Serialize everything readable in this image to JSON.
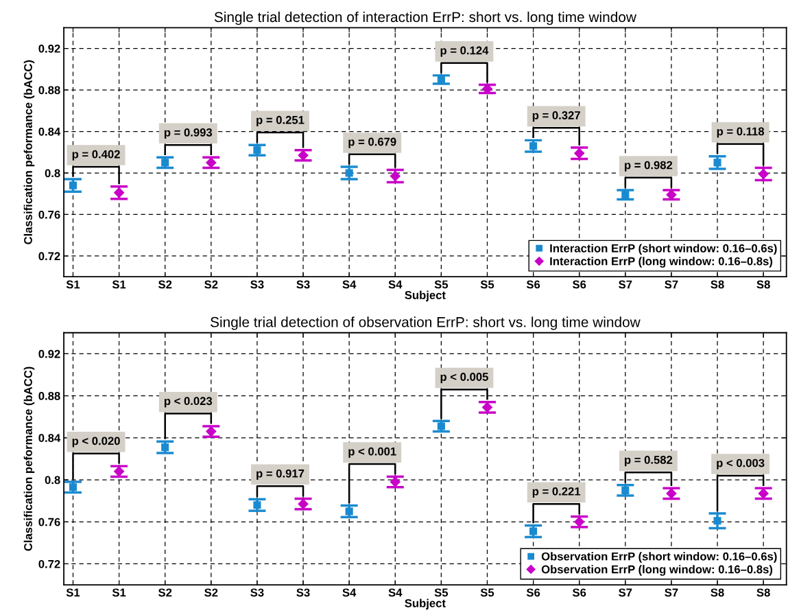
{
  "chart_data": [
    {
      "type": "scatter",
      "title": "Single trial detection of interaction ErrP: short vs. long time window",
      "xlabel": "Subject",
      "ylabel": "Classification peformance (bACC)",
      "categories": [
        "S1",
        "S1",
        "S2",
        "S2",
        "S3",
        "S3",
        "S4",
        "S4",
        "S5",
        "S5",
        "S6",
        "S6",
        "S7",
        "S7",
        "S8",
        "S8"
      ],
      "series": [
        {
          "name": "Interaction ErrP (short window: 0.16–0.6s)",
          "color": "#1a8ad0",
          "marker": "square",
          "values": [
            0.788,
            null,
            0.81,
            null,
            0.822,
            null,
            0.8,
            null,
            0.89,
            null,
            0.826,
            null,
            0.779,
            null,
            0.81,
            null
          ],
          "errors": [
            0.006,
            null,
            0.005,
            null,
            0.005,
            null,
            0.006,
            null,
            0.004,
            null,
            0.0055,
            null,
            0.0045,
            null,
            0.006,
            null
          ]
        },
        {
          "name": "Interaction ErrP (long window: 0.16–0.8s)",
          "color": "#c800c8",
          "marker": "diamond",
          "values": [
            null,
            0.781,
            null,
            0.81,
            null,
            0.817,
            null,
            0.797,
            null,
            0.881,
            null,
            0.819,
            null,
            0.779,
            null,
            0.799
          ],
          "errors": [
            null,
            0.006,
            null,
            0.005,
            null,
            0.005,
            null,
            0.006,
            null,
            0.004,
            null,
            0.0055,
            null,
            0.0045,
            null,
            0.006
          ]
        }
      ],
      "annotations": [
        "p = 0.402",
        "p = 0.993",
        "p = 0.251",
        "p = 0.679",
        "p = 0.124",
        "p = 0.327",
        "p = 0.982",
        "p = 0.118"
      ],
      "ylim": [
        0.7,
        0.94
      ],
      "yticks": [
        0.72,
        0.76,
        0.8,
        0.84,
        0.88,
        0.92
      ],
      "grid": true,
      "legend": "bottom right"
    },
    {
      "type": "scatter",
      "title": "Single trial detection of observation ErrP: short vs. long time window",
      "xlabel": "Subject",
      "ylabel": "Classification peformance (bACC)",
      "categories": [
        "S1",
        "S1",
        "S2",
        "S2",
        "S3",
        "S3",
        "S4",
        "S4",
        "S5",
        "S5",
        "S6",
        "S6",
        "S7",
        "S7",
        "S8",
        "S8"
      ],
      "series": [
        {
          "name": "Observation ErrP (short window: 0.16–0.6s)",
          "color": "#1a8ad0",
          "marker": "square",
          "values": [
            0.793,
            null,
            0.831,
            null,
            0.776,
            null,
            0.77,
            null,
            0.851,
            null,
            0.751,
            null,
            0.79,
            null,
            0.761,
            null
          ],
          "errors": [
            0.005,
            null,
            0.0055,
            null,
            0.0055,
            null,
            0.0055,
            null,
            0.005,
            null,
            0.0055,
            null,
            0.005,
            null,
            0.007,
            null
          ]
        },
        {
          "name": "Observation ErrP (long window: 0.16–0.8s)",
          "color": "#c800c8",
          "marker": "diamond",
          "values": [
            null,
            0.808,
            null,
            0.846,
            null,
            0.777,
            null,
            0.798,
            null,
            0.869,
            null,
            0.76,
            null,
            0.787,
            null,
            0.787
          ],
          "errors": [
            null,
            0.005,
            null,
            0.005,
            null,
            0.005,
            null,
            0.005,
            null,
            0.005,
            null,
            0.005,
            null,
            0.005,
            null,
            0.005
          ]
        }
      ],
      "annotations": [
        "p < 0.020",
        "p < 0.023",
        "p = 0.917",
        "p < 0.001",
        "p < 0.005",
        "p = 0.221",
        "p = 0.582",
        "p < 0.003"
      ],
      "ylim": [
        0.7,
        0.94
      ],
      "yticks": [
        0.72,
        0.76,
        0.8,
        0.84,
        0.88,
        0.92
      ],
      "grid": true,
      "legend": "bottom right"
    }
  ]
}
